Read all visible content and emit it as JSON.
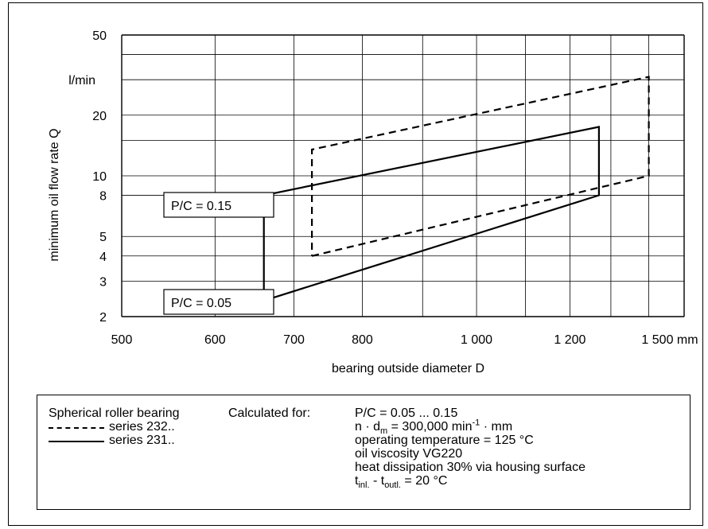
{
  "chart_data": {
    "type": "line",
    "xlabel": "bearing outside diameter D",
    "ylabel": "minimum oil flow rate Q",
    "x_scale": "log",
    "y_scale": "log",
    "xlim": [
      500,
      1500
    ],
    "ylim": [
      2,
      50
    ],
    "x_ticks": [
      500,
      600,
      700,
      800,
      1000,
      1200,
      1500
    ],
    "x_tick_labels": [
      "500",
      "600",
      "700",
      "800",
      "1 000",
      "1 200",
      "1 500 mm"
    ],
    "x_grid": [
      500,
      600,
      700,
      800,
      900,
      1000,
      1100,
      1200,
      1300,
      1400,
      1500
    ],
    "y_ticks": [
      2,
      3,
      4,
      5,
      8,
      10,
      20,
      50
    ],
    "y_tick_labels": [
      "2",
      "3",
      "4",
      "5",
      "8",
      "10",
      "20",
      "50"
    ],
    "y_unit_label": "l/min",
    "y_grid": [
      2,
      3,
      4,
      5,
      8,
      10,
      15,
      20,
      30,
      40,
      50
    ],
    "grid": true,
    "series": [
      {
        "name": "series 232..",
        "style": "dashed",
        "points": [
          [
            725,
            4.0
          ],
          [
            1400,
            10.0
          ],
          [
            1400,
            31.0
          ],
          [
            725,
            13.5
          ],
          [
            725,
            4.0
          ]
        ]
      },
      {
        "name": "series 231..",
        "style": "solid",
        "points": [
          [
            660,
            2.4
          ],
          [
            1270,
            8.0
          ],
          [
            1270,
            17.5
          ],
          [
            660,
            8.0
          ],
          [
            660,
            2.4
          ]
        ]
      }
    ],
    "annotations": [
      {
        "text": "P/C = 0.15",
        "x": 615,
        "y": 8.0
      },
      {
        "text": "P/C = 0.05",
        "x": 615,
        "y": 2.45
      }
    ]
  },
  "legend": {
    "title": "Spherical roller bearing",
    "series_232": "series 232..",
    "series_231": "series 231..",
    "calc_label": "Calculated for:",
    "calc_line1": "P/C = 0.05 ... 0.15",
    "calc_line2_a": "n · d",
    "calc_line2_sub": "m",
    "calc_line2_b": " = 300,000 min",
    "calc_line2_sup": "-1",
    "calc_line2_c": " · mm",
    "calc_line3": "operating temperature = 125 °C",
    "calc_line4": "oil viscosity VG220",
    "calc_line5": "heat dissipation 30% via housing surface",
    "calc_line6_a": "t",
    "calc_line6_sub1": "inl.",
    "calc_line6_b": " - t",
    "calc_line6_sub2": "outl.",
    "calc_line6_c": " = 20 °C"
  }
}
